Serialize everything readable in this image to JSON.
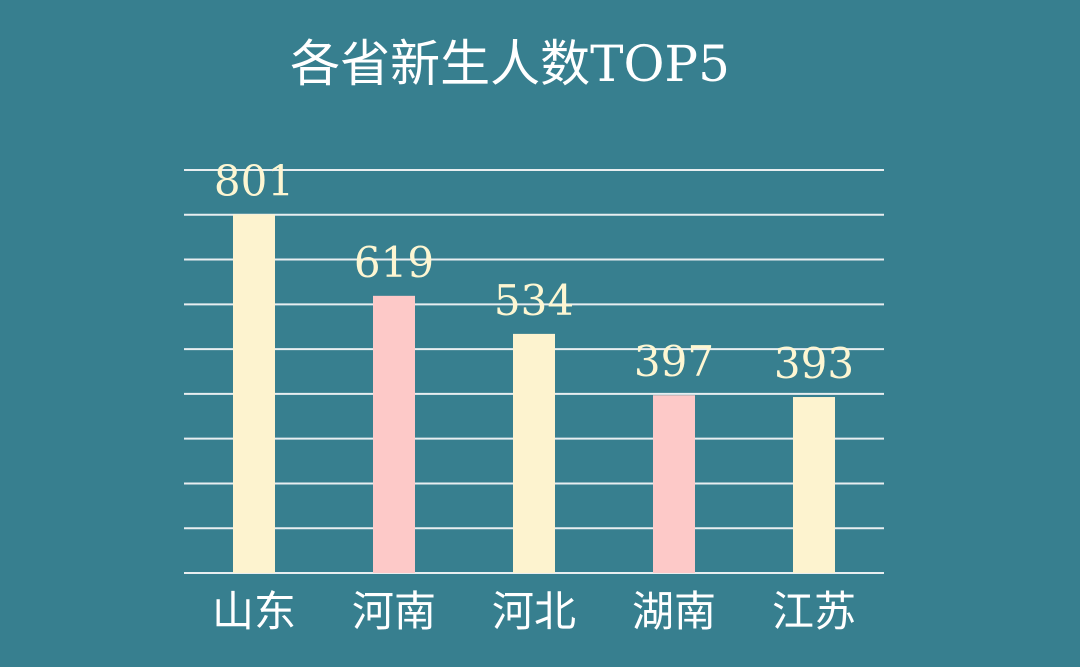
{
  "chart_data": {
    "type": "bar",
    "title": "各省新生人数TOP5",
    "categories": [
      "山东",
      "河南",
      "河北",
      "湖南",
      "江苏"
    ],
    "values": [
      801,
      619,
      534,
      397,
      393
    ],
    "colors": [
      "#fdf3cf",
      "#fdc9c8",
      "#fdf3cf",
      "#fdc9c8",
      "#fdf3cf"
    ],
    "ylim": [
      0,
      900
    ],
    "yticks": [
      0,
      100,
      200,
      300,
      400,
      500,
      600,
      700,
      800,
      900
    ],
    "grid": true
  }
}
